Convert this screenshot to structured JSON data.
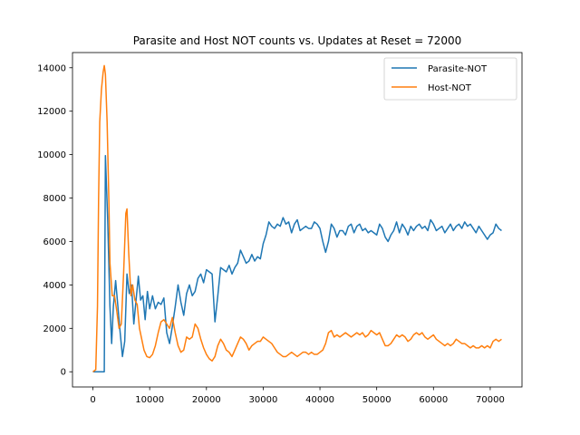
{
  "chart_data": {
    "type": "line",
    "title": "Parasite and Host NOT counts vs. Updates at Reset = 72000",
    "xlabel": "",
    "ylabel": "",
    "xlim": [
      -3600,
      75600
    ],
    "ylim": [
      -700,
      14700
    ],
    "xticks": [
      0,
      10000,
      20000,
      30000,
      40000,
      50000,
      60000,
      70000
    ],
    "yticks": [
      0,
      2000,
      4000,
      6000,
      8000,
      10000,
      12000,
      14000
    ],
    "grid": false,
    "legend_position": "top-right",
    "series": [
      {
        "name": "Parasite-NOT",
        "color": "#1f77b4",
        "points": [
          [
            0,
            0
          ],
          [
            1500,
            0
          ],
          [
            2000,
            0
          ],
          [
            2200,
            9950
          ],
          [
            2600,
            7000
          ],
          [
            3000,
            3000
          ],
          [
            3300,
            1300
          ],
          [
            3600,
            3000
          ],
          [
            4000,
            4200
          ],
          [
            4400,
            3000
          ],
          [
            4800,
            1800
          ],
          [
            5200,
            700
          ],
          [
            5600,
            1400
          ],
          [
            6000,
            4500
          ],
          [
            6400,
            3600
          ],
          [
            6800,
            4000
          ],
          [
            7200,
            2200
          ],
          [
            7600,
            3300
          ],
          [
            8000,
            4400
          ],
          [
            8400,
            3300
          ],
          [
            8800,
            3500
          ],
          [
            9200,
            2400
          ],
          [
            9600,
            3700
          ],
          [
            10000,
            2900
          ],
          [
            10500,
            3500
          ],
          [
            11000,
            2900
          ],
          [
            11500,
            3200
          ],
          [
            12000,
            3100
          ],
          [
            12500,
            3400
          ],
          [
            13000,
            1800
          ],
          [
            13500,
            1300
          ],
          [
            14000,
            2100
          ],
          [
            14500,
            3000
          ],
          [
            15000,
            4000
          ],
          [
            15500,
            3200
          ],
          [
            16000,
            2600
          ],
          [
            16500,
            3600
          ],
          [
            17000,
            4000
          ],
          [
            17500,
            3500
          ],
          [
            18000,
            3700
          ],
          [
            18500,
            4300
          ],
          [
            19000,
            4500
          ],
          [
            19500,
            4100
          ],
          [
            20000,
            4700
          ],
          [
            20500,
            4600
          ],
          [
            21000,
            4500
          ],
          [
            21500,
            2300
          ],
          [
            22000,
            3500
          ],
          [
            22500,
            4800
          ],
          [
            23000,
            4700
          ],
          [
            23500,
            4600
          ],
          [
            24000,
            4900
          ],
          [
            24500,
            4500
          ],
          [
            25000,
            4800
          ],
          [
            25500,
            5000
          ],
          [
            26000,
            5600
          ],
          [
            26500,
            5300
          ],
          [
            27000,
            5000
          ],
          [
            27500,
            5100
          ],
          [
            28000,
            5400
          ],
          [
            28500,
            5100
          ],
          [
            29000,
            5300
          ],
          [
            29500,
            5200
          ],
          [
            30000,
            5900
          ],
          [
            30500,
            6300
          ],
          [
            31000,
            6900
          ],
          [
            31500,
            6700
          ],
          [
            32000,
            6600
          ],
          [
            32500,
            6800
          ],
          [
            33000,
            6700
          ],
          [
            33500,
            7100
          ],
          [
            34000,
            6800
          ],
          [
            34500,
            6900
          ],
          [
            35000,
            6400
          ],
          [
            35500,
            6800
          ],
          [
            36000,
            7000
          ],
          [
            36500,
            6500
          ],
          [
            37000,
            6600
          ],
          [
            37500,
            6700
          ],
          [
            38000,
            6600
          ],
          [
            38500,
            6600
          ],
          [
            39000,
            6900
          ],
          [
            39500,
            6800
          ],
          [
            40000,
            6600
          ],
          [
            40500,
            6000
          ],
          [
            41000,
            5500
          ],
          [
            41500,
            6000
          ],
          [
            42000,
            6800
          ],
          [
            42500,
            6600
          ],
          [
            43000,
            6200
          ],
          [
            43500,
            6500
          ],
          [
            44000,
            6500
          ],
          [
            44500,
            6300
          ],
          [
            45000,
            6700
          ],
          [
            45500,
            6800
          ],
          [
            46000,
            6400
          ],
          [
            46500,
            6700
          ],
          [
            47000,
            6800
          ],
          [
            47500,
            6500
          ],
          [
            48000,
            6600
          ],
          [
            48500,
            6400
          ],
          [
            49000,
            6500
          ],
          [
            49500,
            6400
          ],
          [
            50000,
            6300
          ],
          [
            50500,
            6800
          ],
          [
            51000,
            6600
          ],
          [
            51500,
            6200
          ],
          [
            52000,
            6000
          ],
          [
            52500,
            6300
          ],
          [
            53000,
            6500
          ],
          [
            53500,
            6900
          ],
          [
            54000,
            6400
          ],
          [
            54500,
            6800
          ],
          [
            55000,
            6600
          ],
          [
            55500,
            6300
          ],
          [
            56000,
            6700
          ],
          [
            56500,
            6500
          ],
          [
            57000,
            6700
          ],
          [
            57500,
            6800
          ],
          [
            58000,
            6600
          ],
          [
            58500,
            6700
          ],
          [
            59000,
            6500
          ],
          [
            59500,
            7000
          ],
          [
            60000,
            6800
          ],
          [
            60500,
            6500
          ],
          [
            61000,
            6600
          ],
          [
            61500,
            6700
          ],
          [
            62000,
            6400
          ],
          [
            62500,
            6600
          ],
          [
            63000,
            6800
          ],
          [
            63500,
            6500
          ],
          [
            64000,
            6700
          ],
          [
            64500,
            6800
          ],
          [
            65000,
            6600
          ],
          [
            65500,
            6900
          ],
          [
            66000,
            6700
          ],
          [
            66500,
            6800
          ],
          [
            67000,
            6600
          ],
          [
            67500,
            6400
          ],
          [
            68000,
            6700
          ],
          [
            68500,
            6500
          ],
          [
            69000,
            6300
          ],
          [
            69500,
            6100
          ],
          [
            70000,
            6300
          ],
          [
            70500,
            6400
          ],
          [
            71000,
            6800
          ],
          [
            71500,
            6600
          ],
          [
            72000,
            6500
          ]
        ]
      },
      {
        "name": "Host-NOT",
        "color": "#ff7f0e",
        "points": [
          [
            0,
            0
          ],
          [
            500,
            100
          ],
          [
            800,
            3000
          ],
          [
            1000,
            8000
          ],
          [
            1200,
            11500
          ],
          [
            1500,
            13000
          ],
          [
            1800,
            13800
          ],
          [
            2000,
            14100
          ],
          [
            2200,
            13700
          ],
          [
            2500,
            11500
          ],
          [
            2800,
            8000
          ],
          [
            3000,
            5000
          ],
          [
            3400,
            3500
          ],
          [
            3800,
            3500
          ],
          [
            4200,
            2800
          ],
          [
            4600,
            2000
          ],
          [
            5000,
            2200
          ],
          [
            5400,
            4500
          ],
          [
            5800,
            7300
          ],
          [
            6000,
            7500
          ],
          [
            6300,
            5500
          ],
          [
            6700,
            3500
          ],
          [
            7000,
            4000
          ],
          [
            7400,
            3300
          ],
          [
            7800,
            3100
          ],
          [
            8200,
            2000
          ],
          [
            8600,
            1500
          ],
          [
            9000,
            1000
          ],
          [
            9500,
            700
          ],
          [
            10000,
            650
          ],
          [
            10500,
            800
          ],
          [
            11000,
            1200
          ],
          [
            11500,
            1800
          ],
          [
            12000,
            2300
          ],
          [
            12500,
            2400
          ],
          [
            13000,
            2200
          ],
          [
            13500,
            2000
          ],
          [
            14000,
            2500
          ],
          [
            14500,
            1800
          ],
          [
            15000,
            1200
          ],
          [
            15500,
            900
          ],
          [
            16000,
            1000
          ],
          [
            16500,
            1600
          ],
          [
            17000,
            1500
          ],
          [
            17500,
            1600
          ],
          [
            18000,
            2200
          ],
          [
            18500,
            2000
          ],
          [
            19000,
            1500
          ],
          [
            19500,
            1100
          ],
          [
            20000,
            800
          ],
          [
            20500,
            600
          ],
          [
            21000,
            500
          ],
          [
            21500,
            700
          ],
          [
            22000,
            1200
          ],
          [
            22500,
            1500
          ],
          [
            23000,
            1300
          ],
          [
            23500,
            1000
          ],
          [
            24000,
            900
          ],
          [
            24500,
            700
          ],
          [
            25000,
            1000
          ],
          [
            25500,
            1300
          ],
          [
            26000,
            1600
          ],
          [
            26500,
            1500
          ],
          [
            27000,
            1300
          ],
          [
            27500,
            1000
          ],
          [
            28000,
            1200
          ],
          [
            28500,
            1300
          ],
          [
            29000,
            1400
          ],
          [
            29500,
            1400
          ],
          [
            30000,
            1600
          ],
          [
            30500,
            1500
          ],
          [
            31000,
            1400
          ],
          [
            31500,
            1300
          ],
          [
            32000,
            1100
          ],
          [
            32500,
            900
          ],
          [
            33000,
            800
          ],
          [
            33500,
            700
          ],
          [
            34000,
            700
          ],
          [
            34500,
            800
          ],
          [
            35000,
            900
          ],
          [
            35500,
            800
          ],
          [
            36000,
            700
          ],
          [
            36500,
            800
          ],
          [
            37000,
            900
          ],
          [
            37500,
            900
          ],
          [
            38000,
            800
          ],
          [
            38500,
            900
          ],
          [
            39000,
            800
          ],
          [
            39500,
            800
          ],
          [
            40000,
            900
          ],
          [
            40500,
            1000
          ],
          [
            41000,
            1300
          ],
          [
            41500,
            1800
          ],
          [
            42000,
            1900
          ],
          [
            42500,
            1600
          ],
          [
            43000,
            1700
          ],
          [
            43500,
            1600
          ],
          [
            44000,
            1700
          ],
          [
            44500,
            1800
          ],
          [
            45000,
            1700
          ],
          [
            45500,
            1600
          ],
          [
            46000,
            1700
          ],
          [
            46500,
            1800
          ],
          [
            47000,
            1700
          ],
          [
            47500,
            1800
          ],
          [
            48000,
            1600
          ],
          [
            48500,
            1700
          ],
          [
            49000,
            1900
          ],
          [
            49500,
            1800
          ],
          [
            50000,
            1700
          ],
          [
            50500,
            1800
          ],
          [
            51000,
            1500
          ],
          [
            51500,
            1200
          ],
          [
            52000,
            1200
          ],
          [
            52500,
            1300
          ],
          [
            53000,
            1500
          ],
          [
            53500,
            1700
          ],
          [
            54000,
            1600
          ],
          [
            54500,
            1700
          ],
          [
            55000,
            1600
          ],
          [
            55500,
            1400
          ],
          [
            56000,
            1500
          ],
          [
            56500,
            1700
          ],
          [
            57000,
            1800
          ],
          [
            57500,
            1700
          ],
          [
            58000,
            1800
          ],
          [
            58500,
            1600
          ],
          [
            59000,
            1500
          ],
          [
            59500,
            1600
          ],
          [
            60000,
            1700
          ],
          [
            60500,
            1500
          ],
          [
            61000,
            1400
          ],
          [
            61500,
            1300
          ],
          [
            62000,
            1200
          ],
          [
            62500,
            1300
          ],
          [
            63000,
            1200
          ],
          [
            63500,
            1300
          ],
          [
            64000,
            1500
          ],
          [
            64500,
            1400
          ],
          [
            65000,
            1300
          ],
          [
            65500,
            1300
          ],
          [
            66000,
            1200
          ],
          [
            66500,
            1100
          ],
          [
            67000,
            1200
          ],
          [
            67500,
            1100
          ],
          [
            68000,
            1100
          ],
          [
            68500,
            1200
          ],
          [
            69000,
            1100
          ],
          [
            69500,
            1200
          ],
          [
            70000,
            1100
          ],
          [
            70500,
            1400
          ],
          [
            71000,
            1500
          ],
          [
            71500,
            1400
          ],
          [
            72000,
            1500
          ]
        ]
      }
    ]
  }
}
